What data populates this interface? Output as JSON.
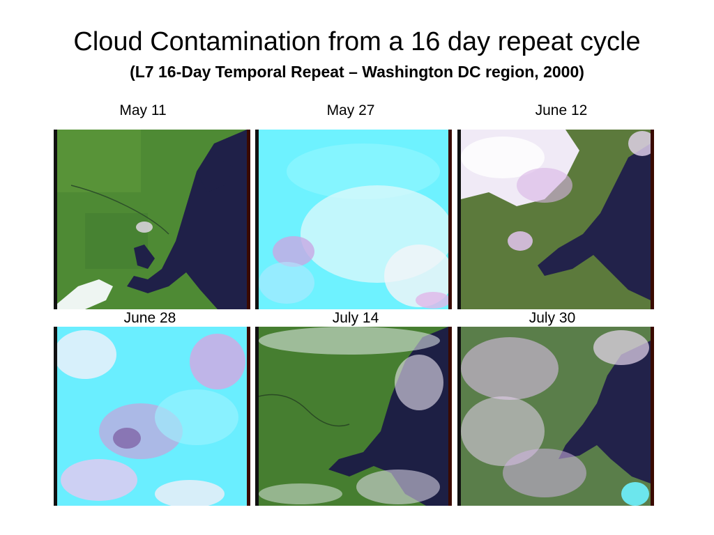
{
  "slide": {
    "title": "Cloud Contamination from a 16 day repeat cycle",
    "subtitle": "(L7 16-Day Temporal Repeat – Washington DC region, 2000)"
  },
  "panels": [
    {
      "date": "May 11",
      "cover": "clear"
    },
    {
      "date": "May 27",
      "cover": "overcast"
    },
    {
      "date": "June 12",
      "cover": "partly-cloudy"
    },
    {
      "date": "June 28",
      "cover": "overcast"
    },
    {
      "date": "July 14",
      "cover": "scattered"
    },
    {
      "date": "July 30",
      "cover": "scattered-heavy"
    }
  ],
  "colors": {
    "land": "#4e8a34",
    "water": "#1f2048",
    "cloud_cyan": "#6ef2ff",
    "cloud_white": "#f4eefa",
    "cloud_pink": "#d8aee6"
  }
}
